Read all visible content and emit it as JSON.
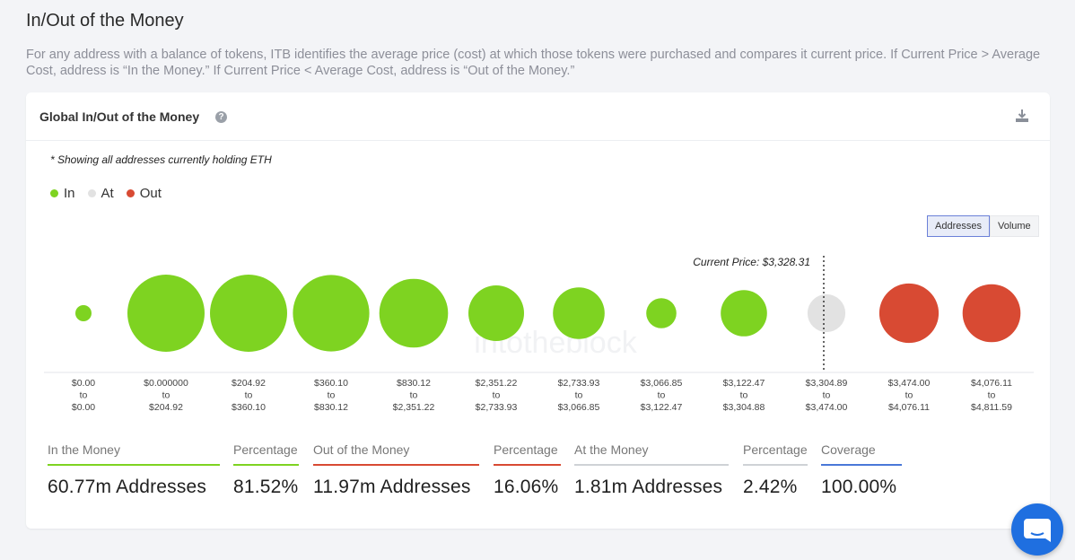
{
  "page": {
    "title": "In/Out of the Money",
    "description": "For any address with a balance of tokens, ITB identifies the average price (cost) at which those tokens were purchased and compares it current price. If Current Price > Average Cost, address is “In the Money.” If Current Price < Average Cost, address is “Out of the Money.”"
  },
  "card": {
    "title": "Global In/Out of the Money",
    "note": "* Showing all addresses currently holding ETH",
    "legend": [
      {
        "label": "In",
        "color": "#7ed321"
      },
      {
        "label": "At",
        "color": "#e2e2e2"
      },
      {
        "label": "Out",
        "color": "#d84a33"
      }
    ],
    "toggle": {
      "addresses": "Addresses",
      "volume": "Volume"
    }
  },
  "chart_data": {
    "type": "bubble",
    "metric": "Addresses",
    "current_price_label": "Current Price: $3,328.31",
    "watermark": "intotheblock",
    "buckets": [
      {
        "from": "$0.00",
        "to_word": "to",
        "to": "$0.00",
        "status": "in",
        "relative_size": 0.21
      },
      {
        "from": "$0.000000",
        "to_word": "to",
        "to": "$204.92",
        "status": "in",
        "relative_size": 1.0
      },
      {
        "from": "$204.92",
        "to_word": "to",
        "to": "$360.10",
        "status": "in",
        "relative_size": 1.0
      },
      {
        "from": "$360.10",
        "to_word": "to",
        "to": "$830.12",
        "status": "in",
        "relative_size": 0.99
      },
      {
        "from": "$830.12",
        "to_word": "to",
        "to": "$2,351.22",
        "status": "in",
        "relative_size": 0.89
      },
      {
        "from": "$2,351.22",
        "to_word": "to",
        "to": "$2,733.93",
        "status": "in",
        "relative_size": 0.72
      },
      {
        "from": "$2,733.93",
        "to_word": "to",
        "to": "$3,066.85",
        "status": "in",
        "relative_size": 0.67
      },
      {
        "from": "$3,066.85",
        "to_word": "to",
        "to": "$3,122.47",
        "status": "in",
        "relative_size": 0.39
      },
      {
        "from": "$3,122.47",
        "to_word": "to",
        "to": "$3,304.88",
        "status": "in",
        "relative_size": 0.6
      },
      {
        "from": "$3,304.89",
        "to_word": "to",
        "to": "$3,474.00",
        "status": "at",
        "relative_size": 0.49
      },
      {
        "from": "$3,474.00",
        "to_word": "to",
        "to": "$4,076.11",
        "status": "out",
        "relative_size": 0.77
      },
      {
        "from": "$4,076.11",
        "to_word": "to",
        "to": "$4,811.59",
        "status": "out",
        "relative_size": 0.75
      }
    ]
  },
  "stats": [
    {
      "label": "In the Money",
      "value": "60.77m Addresses",
      "color": "#7ed321"
    },
    {
      "label": "Percentage",
      "value": "81.52%",
      "color": "#7ed321"
    },
    {
      "label": "Out of the Money",
      "value": "11.97m Addresses",
      "color": "#d84a33"
    },
    {
      "label": "Percentage",
      "value": "16.06%",
      "color": "#d84a33"
    },
    {
      "label": "At the Money",
      "value": "1.81m Addresses",
      "color": "#cfd2d6"
    },
    {
      "label": "Percentage",
      "value": "2.42%",
      "color": "#cfd2d6"
    },
    {
      "label": "Coverage",
      "value": "100.00%",
      "color": "#4a78d8"
    }
  ]
}
